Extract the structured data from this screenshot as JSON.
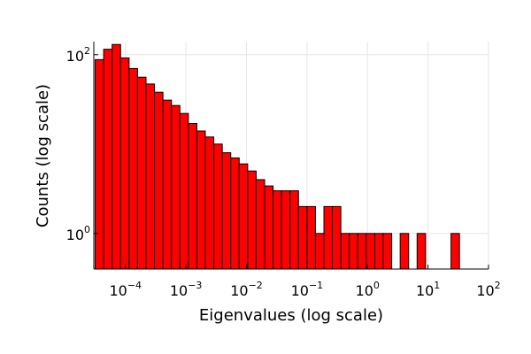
{
  "chart_data": {
    "type": "bar",
    "title": "",
    "xlabel": "Eigenvalues (log scale)",
    "ylabel": "Counts (log scale)",
    "x_scale": "log10",
    "y_scale": "log10",
    "xlim": [
      3e-05,
      100
    ],
    "ylim": [
      0.4,
      140
    ],
    "x_ticks": [
      {
        "base": "10",
        "exp": "−4",
        "value": 0.0001
      },
      {
        "base": "10",
        "exp": "−3",
        "value": 0.001
      },
      {
        "base": "10",
        "exp": "−2",
        "value": 0.01
      },
      {
        "base": "10",
        "exp": "−1",
        "value": 0.1
      },
      {
        "base": "10",
        "exp": "0",
        "value": 1
      },
      {
        "base": "10",
        "exp": "1",
        "value": 10
      },
      {
        "base": "10",
        "exp": "2",
        "value": 100
      }
    ],
    "y_ticks": [
      {
        "base": "10",
        "exp": "0",
        "value": 1
      },
      {
        "base": "10",
        "exp": "2",
        "value": 100
      }
    ],
    "grid": true,
    "legend": "none",
    "bar_color": "#ff0000",
    "bin_edges_log10": [
      -4.5,
      -4.36,
      -4.22,
      -4.08,
      -3.94,
      -3.8,
      -3.66,
      -3.52,
      -3.38,
      -3.24,
      -3.1,
      -2.96,
      -2.82,
      -2.68,
      -2.54,
      -2.4,
      -2.26,
      -2.12,
      -1.98,
      -1.84,
      -1.7,
      -1.56,
      -1.42,
      -1.28,
      -1.14,
      -1.0,
      -0.86,
      -0.72,
      -0.58,
      -0.44,
      -0.3,
      -0.16,
      -0.02,
      0.12,
      0.26,
      0.4,
      0.54,
      0.68,
      0.82,
      0.96,
      1.1,
      1.24,
      1.38,
      1.52,
      1.66,
      1.8,
      1.94,
      2.08
    ],
    "counts": [
      88,
      115,
      130,
      92,
      70,
      56,
      47,
      38,
      31,
      27,
      22,
      17,
      14,
      12,
      10,
      8,
      7,
      6,
      5,
      4,
      3.4,
      3,
      3,
      3,
      2,
      2,
      1,
      2,
      2,
      1,
      1,
      1,
      1,
      1,
      1,
      0,
      1,
      0,
      1,
      0,
      0,
      0,
      1,
      0,
      0,
      0,
      0
    ]
  }
}
